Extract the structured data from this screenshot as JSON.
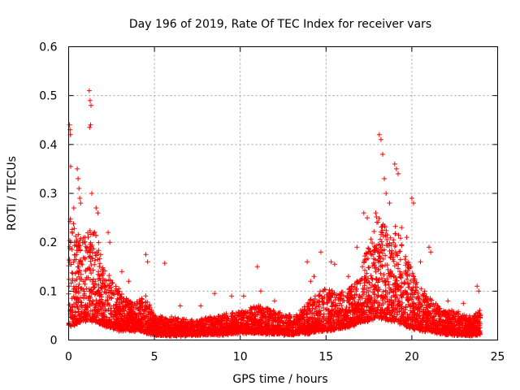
{
  "chart_data": {
    "type": "scatter",
    "title": "Day 196 of 2019, Rate Of TEC Index for receiver vars",
    "xlabel": "GPS time / hours",
    "ylabel": "ROTI / TECUs",
    "xlim": [
      0,
      25
    ],
    "ylim": [
      0,
      0.6
    ],
    "x_ticks": [
      0,
      5,
      10,
      15,
      20,
      25
    ],
    "x_tick_labels": [
      "0",
      "5",
      "10",
      "15",
      "20",
      "25"
    ],
    "y_ticks": [
      0,
      0.1,
      0.2,
      0.3,
      0.4,
      0.5,
      0.6
    ],
    "y_tick_labels": [
      "0",
      "0.1",
      "0.2",
      "0.3",
      "0.4",
      "0.5",
      "0.6"
    ],
    "grid": true,
    "marker": "+",
    "series_color": "#ff0000",
    "envelope": {
      "description": "approximate upper envelope of dense ROTI point cloud (hours, TECU)",
      "hours": [
        0.0,
        0.3,
        0.6,
        1.0,
        1.3,
        1.7,
        2.0,
        2.5,
        3.0,
        3.5,
        4.0,
        4.5,
        5.0,
        6.0,
        7.0,
        8.0,
        9.0,
        10.0,
        11.0,
        12.0,
        13.0,
        13.5,
        14.0,
        14.5,
        15.0,
        15.5,
        16.0,
        16.5,
        17.0,
        17.5,
        18.0,
        18.3,
        18.6,
        19.0,
        19.3,
        19.6,
        20.0,
        20.5,
        21.0,
        21.5,
        22.0,
        22.5,
        23.0,
        23.5,
        24.0
      ],
      "upper": [
        0.26,
        0.24,
        0.22,
        0.21,
        0.23,
        0.22,
        0.15,
        0.13,
        0.1,
        0.08,
        0.08,
        0.09,
        0.05,
        0.045,
        0.04,
        0.045,
        0.05,
        0.06,
        0.07,
        0.06,
        0.05,
        0.06,
        0.08,
        0.1,
        0.11,
        0.1,
        0.1,
        0.11,
        0.14,
        0.2,
        0.26,
        0.25,
        0.22,
        0.24,
        0.21,
        0.18,
        0.14,
        0.11,
        0.09,
        0.07,
        0.06,
        0.06,
        0.05,
        0.05,
        0.06
      ],
      "lower": [
        0.03,
        0.03,
        0.035,
        0.04,
        0.04,
        0.035,
        0.03,
        0.025,
        0.02,
        0.02,
        0.02,
        0.015,
        0.012,
        0.01,
        0.01,
        0.012,
        0.012,
        0.015,
        0.015,
        0.012,
        0.012,
        0.015,
        0.015,
        0.02,
        0.02,
        0.02,
        0.025,
        0.03,
        0.035,
        0.04,
        0.045,
        0.045,
        0.04,
        0.04,
        0.035,
        0.03,
        0.025,
        0.02,
        0.02,
        0.015,
        0.012,
        0.012,
        0.01,
        0.01,
        0.012
      ]
    },
    "outliers": [
      [
        0.05,
        0.44
      ],
      [
        0.08,
        0.43
      ],
      [
        0.1,
        0.42
      ],
      [
        0.12,
        0.355
      ],
      [
        0.3,
        0.27
      ],
      [
        0.5,
        0.35
      ],
      [
        0.55,
        0.33
      ],
      [
        0.6,
        0.31
      ],
      [
        0.65,
        0.29
      ],
      [
        0.7,
        0.28
      ],
      [
        1.2,
        0.51
      ],
      [
        1.25,
        0.49
      ],
      [
        1.3,
        0.48
      ],
      [
        1.22,
        0.435
      ],
      [
        1.28,
        0.44
      ],
      [
        1.35,
        0.3
      ],
      [
        1.6,
        0.27
      ],
      [
        1.7,
        0.26
      ],
      [
        2.3,
        0.22
      ],
      [
        2.4,
        0.2
      ],
      [
        3.1,
        0.14
      ],
      [
        3.5,
        0.12
      ],
      [
        4.5,
        0.175
      ],
      [
        4.6,
        0.16
      ],
      [
        5.6,
        0.157
      ],
      [
        6.5,
        0.07
      ],
      [
        7.7,
        0.07
      ],
      [
        8.5,
        0.095
      ],
      [
        9.5,
        0.09
      ],
      [
        10.2,
        0.09
      ],
      [
        11.0,
        0.15
      ],
      [
        11.2,
        0.1
      ],
      [
        12.0,
        0.08
      ],
      [
        13.9,
        0.16
      ],
      [
        14.1,
        0.12
      ],
      [
        14.3,
        0.13
      ],
      [
        14.7,
        0.18
      ],
      [
        15.3,
        0.16
      ],
      [
        15.5,
        0.155
      ],
      [
        16.3,
        0.13
      ],
      [
        16.8,
        0.19
      ],
      [
        17.2,
        0.26
      ],
      [
        17.4,
        0.25
      ],
      [
        17.9,
        0.26
      ],
      [
        18.1,
        0.42
      ],
      [
        18.2,
        0.41
      ],
      [
        18.3,
        0.38
      ],
      [
        18.4,
        0.33
      ],
      [
        18.5,
        0.3
      ],
      [
        18.7,
        0.28
      ],
      [
        19.0,
        0.36
      ],
      [
        19.1,
        0.35
      ],
      [
        19.2,
        0.34
      ],
      [
        19.4,
        0.23
      ],
      [
        19.7,
        0.21
      ],
      [
        20.0,
        0.29
      ],
      [
        20.1,
        0.28
      ],
      [
        20.5,
        0.16
      ],
      [
        21.0,
        0.19
      ],
      [
        21.1,
        0.18
      ],
      [
        22.1,
        0.08
      ],
      [
        23.0,
        0.075
      ],
      [
        23.8,
        0.11
      ],
      [
        23.9,
        0.1
      ]
    ]
  }
}
